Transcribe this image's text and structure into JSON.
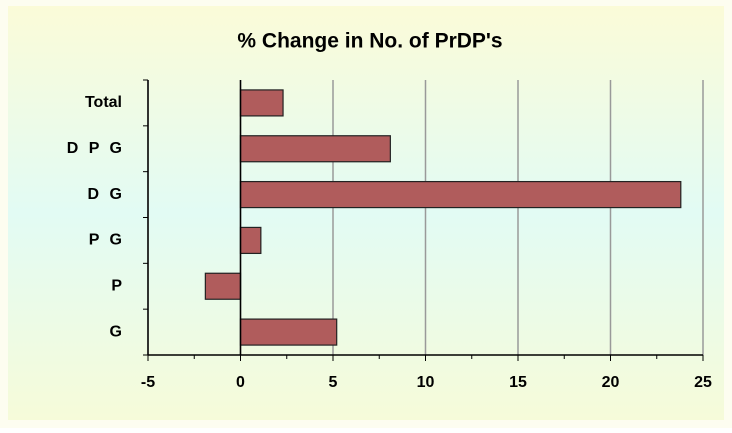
{
  "chart_data": {
    "type": "barh",
    "title": "% Change in No. of PrDP's",
    "categories": [
      "Total",
      "D P G",
      "D G",
      "P G",
      "P",
      "G"
    ],
    "values": [
      2.3,
      8.1,
      23.8,
      1.1,
      -1.9,
      5.2
    ],
    "color": "#b05c5c",
    "xlim": [
      -5,
      25
    ],
    "xticks": [
      -5,
      0,
      5,
      10,
      15,
      20,
      25
    ],
    "grid": true
  }
}
